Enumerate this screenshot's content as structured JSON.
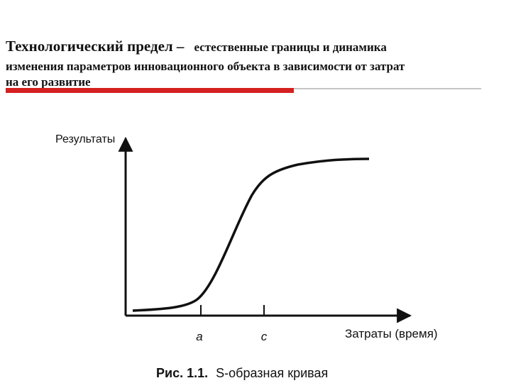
{
  "header": {
    "lead": "Технологический предел –",
    "lines": [
      "естественные границы и динамика",
      "изменения параметров  инновационного объекта в зависимости от затрат",
      "на его развитие"
    ]
  },
  "diagram": {
    "y_axis_label": "Результаты",
    "x_axis_label": "Затраты (время)",
    "marks": [
      "a",
      "c"
    ],
    "caption_label": "Рис. 1.1.",
    "caption_text": "S-образная кривая"
  }
}
